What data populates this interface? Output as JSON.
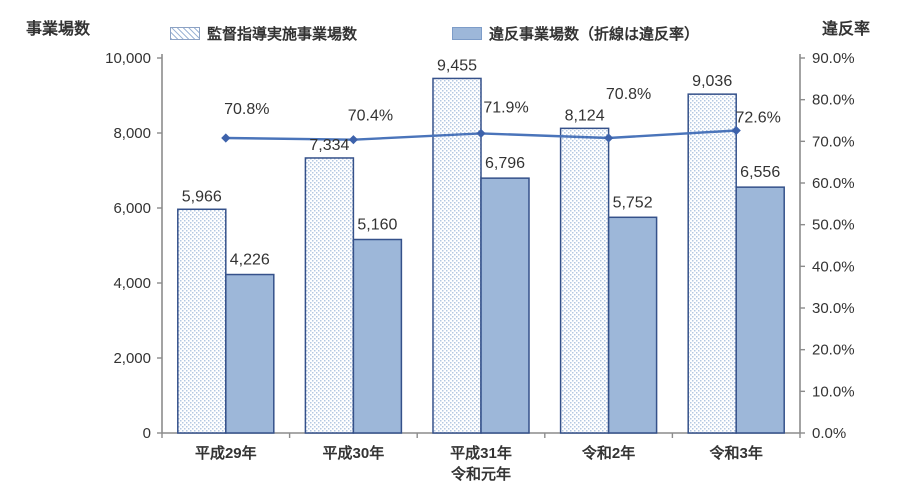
{
  "chart_data": {
    "type": "bar",
    "subtype": "grouped-bars-with-line",
    "title": "",
    "categories": [
      "平成29年",
      "平成30年",
      "平成31年\n令和元年",
      "令和2年",
      "令和3年"
    ],
    "left_axis": {
      "title": "事業場数",
      "min": 0,
      "max": 10000,
      "tick_step": 2000,
      "tick_labels": [
        "0",
        "2,000",
        "4,000",
        "6,000",
        "8,000",
        "10,000"
      ]
    },
    "right_axis": {
      "title": "違反率",
      "min": 0,
      "max": 90,
      "tick_step": 10,
      "tick_labels": [
        "0.0%",
        "10.0%",
        "20.0%",
        "30.0%",
        "40.0%",
        "50.0%",
        "60.0%",
        "70.0%",
        "80.0%",
        "90.0%"
      ]
    },
    "series": [
      {
        "name": "監督指導実施事業場数",
        "type": "bar",
        "style": "hatched",
        "axis": "left",
        "values": [
          5966,
          7334,
          9455,
          8124,
          9036
        ],
        "labels": [
          "5,966",
          "7,334",
          "9,455",
          "8,124",
          "9,036"
        ]
      },
      {
        "name": "違反事業場数（折線は違反率）",
        "type": "bar",
        "style": "solid",
        "axis": "left",
        "values": [
          4226,
          5160,
          6796,
          5752,
          6556
        ],
        "labels": [
          "4,226",
          "5,160",
          "6,796",
          "5,752",
          "6,556"
        ]
      },
      {
        "name": "違反率",
        "type": "line",
        "axis": "right",
        "values": [
          70.8,
          70.4,
          71.9,
          70.8,
          72.6
        ],
        "labels": [
          "70.8%",
          "70.4%",
          "71.9%",
          "70.8%",
          "72.6%"
        ]
      }
    ],
    "colors": {
      "bar_fill": "#9db7d9",
      "bar_border": "#35518a",
      "hatch_dot": "#b4c8e2",
      "line": "#4a74ba",
      "marker": "#3d62ab",
      "axis": "#8c8c8c",
      "text": "#333333"
    },
    "legend_position": "top",
    "grid": "off"
  }
}
